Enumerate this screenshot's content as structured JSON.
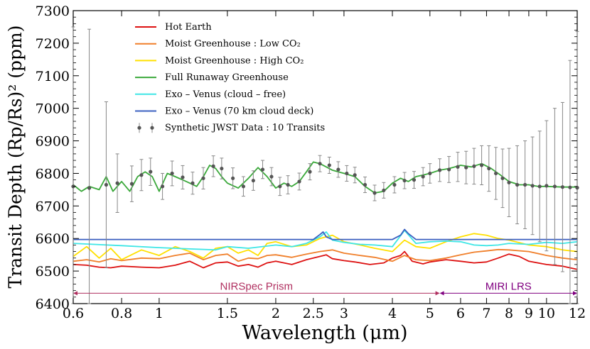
{
  "chart_data": {
    "type": "line",
    "xlabel": "Wavelength (μm)",
    "ylabel": "Transit Depth (Rp/Rs)² (ppm)",
    "x_scale": "log",
    "xlim": [
      0.6,
      12
    ],
    "ylim": [
      6400,
      7300
    ],
    "x_ticks": [
      0.6,
      0.8,
      1,
      1.5,
      2,
      2.5,
      3,
      4,
      5,
      6,
      7,
      8,
      9,
      10,
      12
    ],
    "x_tick_labels": [
      "0.6",
      "0.8",
      "1",
      "1.5",
      "2",
      "2.5",
      "3",
      "4",
      "5",
      "6",
      "7",
      "8",
      "9",
      "10",
      "12"
    ],
    "y_ticks": [
      6400,
      6500,
      6600,
      6700,
      6800,
      6900,
      7000,
      7100,
      7200,
      7300
    ],
    "y_tick_labels": [
      "6400",
      "6500",
      "6600",
      "6700",
      "6800",
      "6900",
      "7000",
      "7100",
      "7200",
      "7300"
    ],
    "grid": false,
    "legend_position": "top-left",
    "series": [
      {
        "name": "Hot Earth",
        "color": "#dd1111",
        "x": [
          0.6,
          0.65,
          0.7,
          0.75,
          0.8,
          0.9,
          1.0,
          1.1,
          1.2,
          1.3,
          1.4,
          1.5,
          1.6,
          1.7,
          1.8,
          1.9,
          2.0,
          2.2,
          2.4,
          2.6,
          2.7,
          2.8,
          3.0,
          3.2,
          3.5,
          3.8,
          4.0,
          4.2,
          4.3,
          4.5,
          4.8,
          5.0,
          5.5,
          6.0,
          6.5,
          7.0,
          7.5,
          8.0,
          8.5,
          9.0,
          10.0,
          11.0,
          12.0
        ],
        "y": [
          6520,
          6518,
          6512,
          6510,
          6515,
          6512,
          6510,
          6518,
          6530,
          6510,
          6525,
          6528,
          6515,
          6520,
          6512,
          6525,
          6530,
          6520,
          6535,
          6545,
          6550,
          6538,
          6532,
          6528,
          6520,
          6525,
          6540,
          6548,
          6560,
          6530,
          6522,
          6528,
          6535,
          6530,
          6525,
          6528,
          6540,
          6552,
          6545,
          6530,
          6520,
          6515,
          6505
        ]
      },
      {
        "name": "Moist Greenhouse : Low CO₂",
        "color": "#f07f2a",
        "x": [
          0.6,
          0.65,
          0.7,
          0.75,
          0.8,
          0.9,
          1.0,
          1.1,
          1.2,
          1.3,
          1.4,
          1.5,
          1.6,
          1.7,
          1.8,
          1.9,
          2.0,
          2.2,
          2.4,
          2.6,
          2.8,
          3.0,
          3.3,
          3.6,
          4.0,
          4.3,
          4.6,
          5.0,
          5.5,
          6.0,
          6.5,
          7.0,
          7.5,
          8.0,
          9.0,
          10.0,
          11.0,
          12.0
        ],
        "y": [
          6530,
          6535,
          6528,
          6538,
          6532,
          6540,
          6538,
          6548,
          6555,
          6535,
          6548,
          6552,
          6530,
          6540,
          6538,
          6548,
          6550,
          6542,
          6552,
          6560,
          6565,
          6555,
          6548,
          6542,
          6530,
          6548,
          6535,
          6532,
          6540,
          6550,
          6558,
          6562,
          6566,
          6565,
          6560,
          6548,
          6540,
          6535
        ]
      },
      {
        "name": "Moist Greenhouse : High CO₂",
        "color": "#ffe000",
        "x": [
          0.6,
          0.65,
          0.7,
          0.75,
          0.8,
          0.9,
          1.0,
          1.1,
          1.2,
          1.3,
          1.4,
          1.5,
          1.6,
          1.7,
          1.8,
          1.9,
          2.0,
          2.2,
          2.4,
          2.6,
          2.8,
          3.0,
          3.3,
          3.6,
          4.0,
          4.3,
          4.6,
          5.0,
          5.5,
          6.0,
          6.5,
          7.0,
          7.5,
          8.0,
          9.0,
          10.0,
          11.0,
          12.0
        ],
        "y": [
          6545,
          6575,
          6540,
          6570,
          6535,
          6565,
          6548,
          6575,
          6560,
          6540,
          6570,
          6575,
          6555,
          6565,
          6548,
          6585,
          6590,
          6575,
          6580,
          6600,
          6610,
          6590,
          6580,
          6570,
          6560,
          6595,
          6575,
          6570,
          6590,
          6605,
          6615,
          6610,
          6600,
          6595,
          6580,
          6575,
          6565,
          6560
        ]
      },
      {
        "name": "Full Runaway Greenhouse",
        "color": "#3aa83a",
        "x": [
          0.6,
          0.63,
          0.66,
          0.7,
          0.73,
          0.76,
          0.8,
          0.84,
          0.88,
          0.92,
          0.96,
          1.0,
          1.05,
          1.1,
          1.15,
          1.2,
          1.25,
          1.3,
          1.35,
          1.4,
          1.45,
          1.5,
          1.6,
          1.7,
          1.8,
          1.9,
          2.0,
          2.1,
          2.2,
          2.3,
          2.4,
          2.5,
          2.6,
          2.7,
          2.8,
          2.9,
          3.0,
          3.2,
          3.4,
          3.6,
          3.8,
          4.0,
          4.2,
          4.4,
          4.6,
          4.8,
          5.0,
          5.3,
          5.6,
          6.0,
          6.4,
          6.8,
          7.2,
          7.6,
          8.0,
          8.5,
          9.0,
          9.5,
          10.0,
          11.0,
          12.0
        ],
        "y": [
          6765,
          6745,
          6760,
          6750,
          6790,
          6745,
          6775,
          6745,
          6790,
          6805,
          6790,
          6745,
          6800,
          6790,
          6780,
          6770,
          6760,
          6790,
          6825,
          6815,
          6790,
          6770,
          6755,
          6785,
          6818,
          6790,
          6755,
          6770,
          6760,
          6775,
          6805,
          6835,
          6830,
          6820,
          6810,
          6805,
          6800,
          6790,
          6760,
          6740,
          6745,
          6770,
          6785,
          6775,
          6790,
          6795,
          6800,
          6810,
          6815,
          6825,
          6820,
          6830,
          6815,
          6795,
          6775,
          6765,
          6765,
          6760,
          6760,
          6758,
          6758
        ]
      },
      {
        "name": "Exo – Venus (cloud – free)",
        "color": "#3fe6e6",
        "x": [
          0.6,
          0.8,
          1.0,
          1.2,
          1.4,
          1.5,
          1.7,
          2.0,
          2.2,
          2.4,
          2.6,
          2.7,
          2.8,
          3.0,
          3.3,
          3.6,
          4.0,
          4.3,
          4.6,
          5.0,
          5.5,
          6.0,
          6.5,
          7.0,
          7.5,
          8.0,
          9.0,
          10.0,
          11.0,
          12.0
        ],
        "y": [
          6585,
          6578,
          6572,
          6568,
          6565,
          6575,
          6570,
          6580,
          6575,
          6585,
          6605,
          6620,
          6595,
          6588,
          6582,
          6580,
          6575,
          6625,
          6585,
          6590,
          6592,
          6590,
          6580,
          6578,
          6580,
          6585,
          6582,
          6588,
          6585,
          6590
        ]
      },
      {
        "name": "Exo – Venus (70 km cloud deck)",
        "color": "#3a5fc0",
        "x": [
          0.6,
          1.0,
          1.5,
          2.0,
          2.5,
          2.6,
          2.65,
          2.7,
          2.8,
          3.0,
          4.0,
          4.2,
          4.3,
          4.4,
          4.6,
          5.0,
          6.0,
          8.0,
          10.0,
          12.0
        ],
        "y": [
          6597,
          6597,
          6597,
          6597,
          6597,
          6612,
          6620,
          6605,
          6597,
          6597,
          6597,
          6610,
          6628,
          6615,
          6597,
          6597,
          6597,
          6597,
          6597,
          6597
        ]
      }
    ],
    "data_points": {
      "name": "Synthetic JWST Data : 10 Transits",
      "color": "#555555",
      "x": [
        0.6,
        0.66,
        0.73,
        0.78,
        0.85,
        0.9,
        0.95,
        1.02,
        1.08,
        1.15,
        1.22,
        1.3,
        1.38,
        1.45,
        1.55,
        1.65,
        1.75,
        1.85,
        1.95,
        2.05,
        2.15,
        2.3,
        2.45,
        2.6,
        2.75,
        2.9,
        3.05,
        3.2,
        3.4,
        3.6,
        3.8,
        4.05,
        4.3,
        4.55,
        4.8,
        5.0,
        5.3,
        5.6,
        5.9,
        6.2,
        6.5,
        6.8,
        7.1,
        7.4,
        7.7,
        8.0,
        8.4,
        8.8,
        9.2,
        9.6,
        10.0,
        10.5,
        11.0,
        11.5,
        12.0
      ],
      "y": [
        6760,
        6755,
        6765,
        6770,
        6768,
        6795,
        6805,
        6760,
        6800,
        6788,
        6770,
        6785,
        6822,
        6815,
        6785,
        6760,
        6778,
        6812,
        6790,
        6760,
        6765,
        6775,
        6805,
        6830,
        6825,
        6812,
        6800,
        6795,
        6765,
        6740,
        6748,
        6765,
        6778,
        6780,
        6790,
        6800,
        6810,
        6812,
        6820,
        6818,
        6822,
        6825,
        6815,
        6800,
        6785,
        6772,
        6765,
        6765,
        6762,
        6760,
        6762,
        6760,
        6758,
        6757,
        6756
      ],
      "yerr": [
        490,
        488,
        255,
        90,
        55,
        48,
        42,
        40,
        38,
        36,
        34,
        33,
        32,
        32,
        32,
        30,
        30,
        28,
        28,
        28,
        28,
        26,
        25,
        25,
        25,
        24,
        24,
        24,
        24,
        24,
        24,
        25,
        25,
        26,
        28,
        30,
        35,
        40,
        45,
        50,
        55,
        60,
        70,
        80,
        90,
        105,
        120,
        135,
        150,
        170,
        200,
        240,
        260,
        390,
        480
      ]
    },
    "annotations": [
      {
        "text": "NIRSpec Prism",
        "x_start": 0.6,
        "x_end": 5.3,
        "y": 6432,
        "color": "#b03060"
      },
      {
        "text": "MIRI LRS",
        "x_start": 5.3,
        "x_end": 12.0,
        "y": 6432,
        "color": "#800080"
      }
    ]
  }
}
